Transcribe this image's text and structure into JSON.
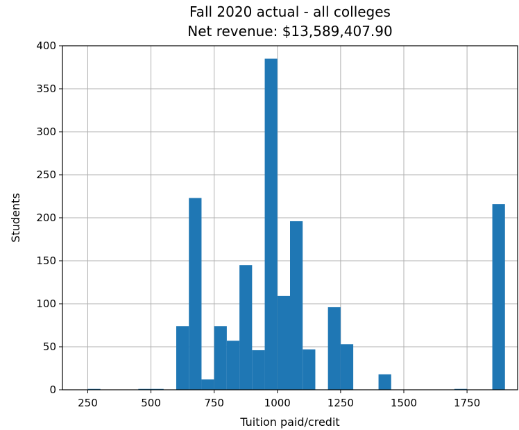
{
  "chart_data": {
    "type": "bar",
    "histogram": true,
    "title": "Fall 2020 actual - all colleges",
    "subtitle": "Net revenue: $13,589,407.90",
    "xlabel": "Tuition paid/credit",
    "ylabel": "Students",
    "xlim": [
      150,
      1950
    ],
    "ylim": [
      0,
      400
    ],
    "xticks": [
      250,
      500,
      750,
      1000,
      1250,
      1500,
      1750
    ],
    "xtick_labels": [
      "250",
      "500",
      "750",
      "1000",
      "1250",
      "1500",
      "1750"
    ],
    "yticks": [
      0,
      50,
      100,
      150,
      200,
      250,
      300,
      350,
      400
    ],
    "ytick_labels": [
      "0",
      "50",
      "100",
      "150",
      "200",
      "250",
      "300",
      "350",
      "400"
    ],
    "grid": true,
    "bin_width": 50,
    "bins": [
      {
        "x0": 150,
        "x1": 200,
        "count": 0
      },
      {
        "x0": 200,
        "x1": 250,
        "count": 0
      },
      {
        "x0": 250,
        "x1": 300,
        "count": 1
      },
      {
        "x0": 300,
        "x1": 350,
        "count": 0
      },
      {
        "x0": 350,
        "x1": 400,
        "count": 0
      },
      {
        "x0": 400,
        "x1": 450,
        "count": 0
      },
      {
        "x0": 450,
        "x1": 500,
        "count": 1
      },
      {
        "x0": 500,
        "x1": 550,
        "count": 1
      },
      {
        "x0": 550,
        "x1": 600,
        "count": 0
      },
      {
        "x0": 600,
        "x1": 650,
        "count": 74
      },
      {
        "x0": 650,
        "x1": 700,
        "count": 223
      },
      {
        "x0": 700,
        "x1": 750,
        "count": 12
      },
      {
        "x0": 750,
        "x1": 800,
        "count": 74
      },
      {
        "x0": 800,
        "x1": 850,
        "count": 57
      },
      {
        "x0": 850,
        "x1": 900,
        "count": 145
      },
      {
        "x0": 900,
        "x1": 950,
        "count": 46
      },
      {
        "x0": 950,
        "x1": 1000,
        "count": 385
      },
      {
        "x0": 1000,
        "x1": 1050,
        "count": 109
      },
      {
        "x0": 1050,
        "x1": 1100,
        "count": 196
      },
      {
        "x0": 1100,
        "x1": 1150,
        "count": 47
      },
      {
        "x0": 1150,
        "x1": 1200,
        "count": 0
      },
      {
        "x0": 1200,
        "x1": 1250,
        "count": 96
      },
      {
        "x0": 1250,
        "x1": 1300,
        "count": 53
      },
      {
        "x0": 1300,
        "x1": 1350,
        "count": 0
      },
      {
        "x0": 1350,
        "x1": 1400,
        "count": 0
      },
      {
        "x0": 1400,
        "x1": 1450,
        "count": 18
      },
      {
        "x0": 1450,
        "x1": 1500,
        "count": 0
      },
      {
        "x0": 1500,
        "x1": 1550,
        "count": 0
      },
      {
        "x0": 1550,
        "x1": 1600,
        "count": 0
      },
      {
        "x0": 1600,
        "x1": 1650,
        "count": 0
      },
      {
        "x0": 1650,
        "x1": 1700,
        "count": 0
      },
      {
        "x0": 1700,
        "x1": 1750,
        "count": 1
      },
      {
        "x0": 1750,
        "x1": 1800,
        "count": 0
      },
      {
        "x0": 1800,
        "x1": 1850,
        "count": 0
      },
      {
        "x0": 1850,
        "x1": 1900,
        "count": 216
      }
    ],
    "colors": {
      "bar": "#1f77b4",
      "grid": "#b0b0b0"
    }
  }
}
